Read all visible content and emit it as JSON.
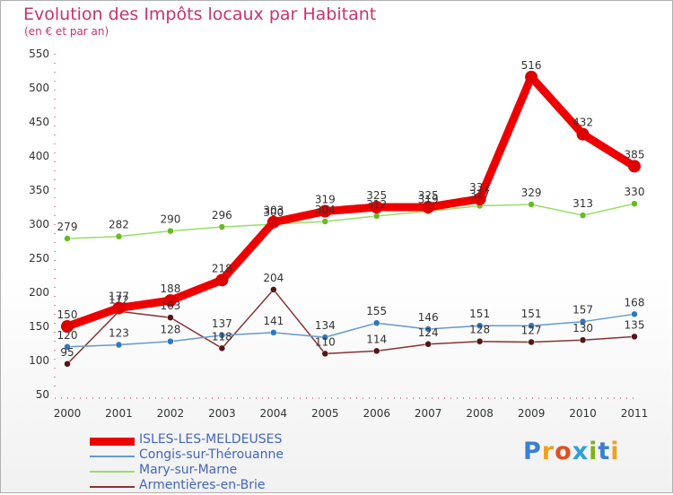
{
  "chart_data": {
    "type": "line",
    "title": "Evolution des Impôts locaux par Habitant",
    "subtitle": "(en € et par an)",
    "xlabel": "",
    "ylabel": "",
    "categories": [
      "2000",
      "2001",
      "2002",
      "2003",
      "2004",
      "2005",
      "2006",
      "2007",
      "2008",
      "2009",
      "2010",
      "2011"
    ],
    "ylim": [
      50,
      550
    ],
    "yticks": [
      50,
      100,
      150,
      200,
      250,
      300,
      350,
      400,
      450,
      500,
      550
    ],
    "grid": false,
    "legend_position": "bottom-left",
    "series": [
      {
        "name": "ISLES-LES-MELDEUSES",
        "color": "#ee0000",
        "values": [
          150,
          177,
          188,
          218,
          303,
          319,
          325,
          325,
          337,
          516,
          432,
          385
        ]
      },
      {
        "name": "Congis-sur-Thérouanne",
        "color": "#6699cc",
        "values": [
          120,
          123,
          128,
          137,
          141,
          134,
          155,
          146,
          151,
          151,
          157,
          168
        ]
      },
      {
        "name": "Mary-sur-Marne",
        "color": "#99dd66",
        "values": [
          279,
          282,
          290,
          296,
          300,
          304,
          312,
          319,
          327,
          329,
          313,
          330
        ]
      },
      {
        "name": "Armentières-en-Brie",
        "color": "#883333",
        "values": [
          95,
          172,
          163,
          118,
          204,
          110,
          114,
          124,
          128,
          127,
          130,
          135
        ]
      }
    ]
  },
  "logo": {
    "text": "Proxiti",
    "letters": [
      "P",
      "r",
      "o",
      "x",
      "i",
      "t",
      "i"
    ]
  }
}
